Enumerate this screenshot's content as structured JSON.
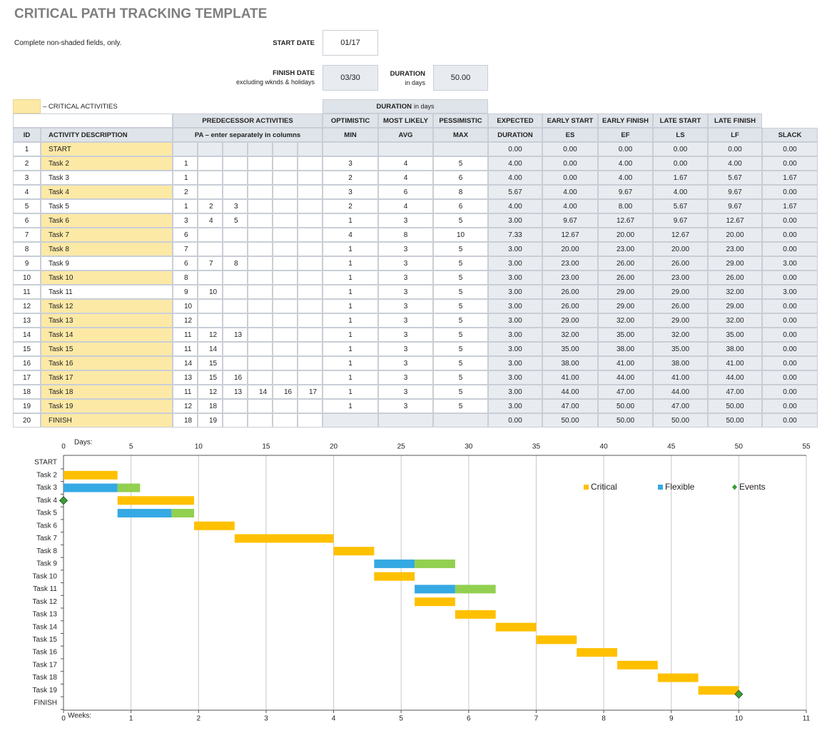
{
  "header": {
    "title": "CRITICAL PATH TRACKING TEMPLATE",
    "instructions": "Complete non-shaded fields, only.",
    "start_date": {
      "label": "START DATE",
      "value": "01/17"
    },
    "finish_date": {
      "label": "FINISH DATE",
      "note": "excluding wknds & holidays",
      "value": "03/30"
    },
    "duration": {
      "label": "DURATION",
      "note": "in days",
      "value": "50.00"
    },
    "legend": "– CRITICAL ACTIVITIES"
  },
  "table": {
    "group_header": {
      "label": "DURATION",
      "note": "in days"
    },
    "header_row_1": [
      "PREDECESSOR ACTIVITIES",
      "OPTIMISTIC",
      "MOST LIKELY",
      "PESSIMISTIC",
      "EXPECTED",
      "EARLY START",
      "EARLY FINISH",
      "LATE START",
      "LATE FINISH"
    ],
    "columns": [
      "ID",
      "ACTIVITY DESCRIPTION",
      "PA  –  enter separately in columns",
      "MIN",
      "AVG",
      "MAX",
      "DURATION",
      "ES",
      "EF",
      "LS",
      "LF",
      "SLACK"
    ],
    "rows": [
      {
        "critical": true,
        "cells": [
          "1",
          "START",
          null,
          null,
          null,
          null,
          null,
          null,
          null,
          null,
          null,
          "0.00",
          "0.00",
          "0.00",
          "0.00",
          "0.00",
          "0.00"
        ]
      },
      {
        "critical": true,
        "cells": [
          "2",
          "Task 2",
          "1",
          null,
          null,
          null,
          null,
          null,
          "3",
          "4",
          "5",
          "4.00",
          "0.00",
          "4.00",
          "0.00",
          "4.00",
          "0.00"
        ]
      },
      {
        "critical": false,
        "cells": [
          "3",
          "Task 3",
          "1",
          null,
          null,
          null,
          null,
          null,
          "2",
          "4",
          "6",
          "4.00",
          "0.00",
          "4.00",
          "1.67",
          "5.67",
          "1.67"
        ]
      },
      {
        "critical": true,
        "cells": [
          "4",
          "Task 4",
          "2",
          null,
          null,
          null,
          null,
          null,
          "3",
          "6",
          "8",
          "5.67",
          "4.00",
          "9.67",
          "4.00",
          "9.67",
          "0.00"
        ]
      },
      {
        "critical": false,
        "cells": [
          "5",
          "Task 5",
          "1",
          "2",
          "3",
          null,
          null,
          null,
          "2",
          "4",
          "6",
          "4.00",
          "4.00",
          "8.00",
          "5.67",
          "9.67",
          "1.67"
        ]
      },
      {
        "critical": true,
        "cells": [
          "6",
          "Task 6",
          "3",
          "4",
          "5",
          null,
          null,
          null,
          "1",
          "3",
          "5",
          "3.00",
          "9.67",
          "12.67",
          "9.67",
          "12.67",
          "0.00"
        ]
      },
      {
        "critical": true,
        "cells": [
          "7",
          "Task 7",
          "6",
          null,
          null,
          null,
          null,
          null,
          "4",
          "8",
          "10",
          "7.33",
          "12.67",
          "20.00",
          "12.67",
          "20.00",
          "0.00"
        ]
      },
      {
        "critical": true,
        "cells": [
          "8",
          "Task 8",
          "7",
          null,
          null,
          null,
          null,
          null,
          "1",
          "3",
          "5",
          "3.00",
          "20.00",
          "23.00",
          "20.00",
          "23.00",
          "0.00"
        ]
      },
      {
        "critical": false,
        "cells": [
          "9",
          "Task 9",
          "6",
          "7",
          "8",
          null,
          null,
          null,
          "1",
          "3",
          "5",
          "3.00",
          "23.00",
          "26.00",
          "26.00",
          "29.00",
          "3.00"
        ]
      },
      {
        "critical": true,
        "cells": [
          "10",
          "Task 10",
          "8",
          null,
          null,
          null,
          null,
          null,
          "1",
          "3",
          "5",
          "3.00",
          "23.00",
          "26.00",
          "23.00",
          "26.00",
          "0.00"
        ]
      },
      {
        "critical": false,
        "cells": [
          "11",
          "Task 11",
          "9",
          "10",
          null,
          null,
          null,
          null,
          "1",
          "3",
          "5",
          "3.00",
          "26.00",
          "29.00",
          "29.00",
          "32.00",
          "3.00"
        ]
      },
      {
        "critical": true,
        "cells": [
          "12",
          "Task 12",
          "10",
          null,
          null,
          null,
          null,
          null,
          "1",
          "3",
          "5",
          "3.00",
          "26.00",
          "29.00",
          "26.00",
          "29.00",
          "0.00"
        ]
      },
      {
        "critical": true,
        "cells": [
          "13",
          "Task 13",
          "12",
          null,
          null,
          null,
          null,
          null,
          "1",
          "3",
          "5",
          "3.00",
          "29.00",
          "32.00",
          "29.00",
          "32.00",
          "0.00"
        ]
      },
      {
        "critical": true,
        "cells": [
          "14",
          "Task 14",
          "11",
          "12",
          "13",
          null,
          null,
          null,
          "1",
          "3",
          "5",
          "3.00",
          "32.00",
          "35.00",
          "32.00",
          "35.00",
          "0.00"
        ]
      },
      {
        "critical": true,
        "cells": [
          "15",
          "Task 15",
          "11",
          "14",
          null,
          null,
          null,
          null,
          "1",
          "3",
          "5",
          "3.00",
          "35.00",
          "38.00",
          "35.00",
          "38.00",
          "0.00"
        ]
      },
      {
        "critical": true,
        "cells": [
          "16",
          "Task 16",
          "14",
          "15",
          null,
          null,
          null,
          null,
          "1",
          "3",
          "5",
          "3.00",
          "38.00",
          "41.00",
          "38.00",
          "41.00",
          "0.00"
        ]
      },
      {
        "critical": true,
        "cells": [
          "17",
          "Task 17",
          "13",
          "15",
          "16",
          null,
          null,
          null,
          "1",
          "3",
          "5",
          "3.00",
          "41.00",
          "44.00",
          "41.00",
          "44.00",
          "0.00"
        ]
      },
      {
        "critical": true,
        "cells": [
          "18",
          "Task 18",
          "11",
          "12",
          "13",
          "14",
          "16",
          "17",
          "1",
          "3",
          "5",
          "3.00",
          "44.00",
          "47.00",
          "44.00",
          "47.00",
          "0.00"
        ]
      },
      {
        "critical": true,
        "cells": [
          "19",
          "Task 19",
          "12",
          "18",
          null,
          null,
          null,
          null,
          "1",
          "3",
          "5",
          "3.00",
          "47.00",
          "50.00",
          "47.00",
          "50.00",
          "0.00"
        ]
      },
      {
        "critical": true,
        "cells": [
          "20",
          "FINISH",
          "18",
          "19",
          null,
          null,
          null,
          null,
          null,
          null,
          null,
          "0.00",
          "50.00",
          "50.00",
          "50.00",
          "50.00",
          "0.00"
        ]
      }
    ]
  },
  "chart_data": {
    "type": "gantt",
    "x_label": "Days:",
    "xlim": [
      0,
      55
    ],
    "xticks": [
      0,
      5,
      10,
      15,
      20,
      25,
      30,
      35,
      40,
      45,
      50,
      55
    ],
    "x2_label": "Weeks:",
    "x2lim": [
      0,
      11
    ],
    "x2ticks": [
      0,
      1,
      2,
      3,
      4,
      5,
      6,
      7,
      8,
      9,
      10,
      11
    ],
    "grid": true,
    "legend": "upper right",
    "categories": [
      "START",
      "Task 2",
      "Task 3",
      "Task 4",
      "Task 5",
      "Task 6",
      "Task 7",
      "Task 8",
      "Task 9",
      "Task 10",
      "Task 11",
      "Task 12",
      "Task 13",
      "Task 14",
      "Task 15",
      "Task 16",
      "Task 17",
      "Task 18",
      "Task 19",
      "FINISH"
    ],
    "series": [
      {
        "name": "Critical",
        "color": "#ffc000",
        "start": [
          null,
          0,
          null,
          4,
          null,
          9.67,
          12.67,
          20,
          null,
          23,
          null,
          26,
          29,
          32,
          35,
          38,
          41,
          44,
          47,
          null
        ],
        "values": [
          null,
          4,
          null,
          5.67,
          null,
          3,
          7.33,
          3,
          null,
          3,
          null,
          3,
          3,
          3,
          3,
          3,
          3,
          3,
          3,
          null
        ]
      },
      {
        "name": "Flexible",
        "color": "#35a9e4",
        "start": [
          null,
          null,
          0,
          null,
          4,
          null,
          null,
          null,
          23,
          null,
          26,
          null,
          null,
          null,
          null,
          null,
          null,
          null,
          null,
          null
        ],
        "values": [
          null,
          null,
          4,
          null,
          4,
          null,
          null,
          null,
          3,
          null,
          3,
          null,
          null,
          null,
          null,
          null,
          null,
          null,
          null,
          null
        ]
      },
      {
        "color": "#92d050",
        "start": [
          null,
          null,
          4,
          null,
          8,
          null,
          null,
          null,
          26,
          null,
          29,
          null,
          null,
          null,
          null,
          null,
          null,
          null,
          null,
          null
        ],
        "values": [
          null,
          null,
          1.67,
          null,
          1.67,
          null,
          null,
          null,
          3,
          null,
          3,
          null,
          null,
          null,
          null,
          null,
          null,
          null,
          null,
          null
        ]
      }
    ],
    "events": {
      "name": "Events",
      "color": "#3a9d3a",
      "x": [
        0,
        50
      ],
      "y": [
        3,
        18.3
      ]
    }
  }
}
